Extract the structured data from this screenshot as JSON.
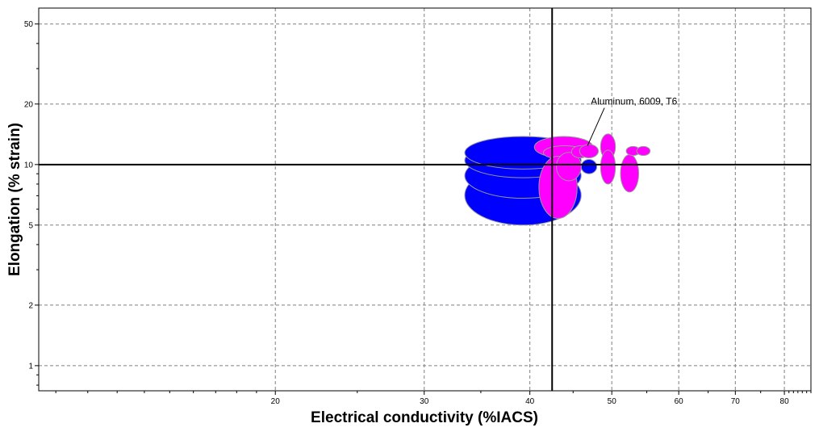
{
  "chart_data": {
    "type": "scatter",
    "xlabel": "Electrical conductivity (%IACS)",
    "ylabel": "Elongation (% strain)",
    "x_scale": "log",
    "y_scale": "log",
    "xlim": [
      10.5,
      86
    ],
    "ylim": [
      0.75,
      60
    ],
    "x_ticks": [
      {
        "value": 20,
        "label": "20"
      },
      {
        "value": 30,
        "label": "30"
      },
      {
        "value": 40,
        "label": "40"
      },
      {
        "value": 50,
        "label": "50"
      },
      {
        "value": 60,
        "label": "60"
      },
      {
        "value": 70,
        "label": "70"
      },
      {
        "value": 80,
        "label": "80"
      }
    ],
    "y_ticks": [
      {
        "value": 1,
        "label": "1"
      },
      {
        "value": 2,
        "label": "2"
      },
      {
        "value": 5,
        "label": "5"
      },
      {
        "value": 10,
        "label": "10"
      },
      {
        "value": 20,
        "label": "20"
      },
      {
        "value": 50,
        "label": "50"
      }
    ],
    "grid": true,
    "crosshair": {
      "x": 42.5,
      "y": 10
    },
    "colors": {
      "blue": "#0000ff",
      "magenta": "#ff00ff"
    },
    "series": [
      {
        "color": "#0000ff",
        "points": [
          {
            "x_range": [
              33.5,
              46.0
            ],
            "y_range": [
              5.0,
              9.9
            ]
          },
          {
            "x_range": [
              33.5,
              46.0
            ],
            "y_range": [
              6.8,
              11.4
            ]
          },
          {
            "x_range": [
              33.5,
              46.0
            ],
            "y_range": [
              8.6,
              12.8
            ]
          },
          {
            "x_range": [
              33.5,
              46.0
            ],
            "y_range": [
              9.5,
              13.8
            ]
          },
          {
            "x_range": [
              46.0,
              48.0
            ],
            "y_range": [
              9.0,
              10.6
            ]
          }
        ]
      },
      {
        "color": "#ff00ff",
        "points": [
          {
            "x_range": [
              40.5,
              47.5
            ],
            "y_range": [
              10.8,
              13.8
            ]
          },
          {
            "x_range": [
              41.5,
              46.5
            ],
            "y_range": [
              10.6,
              12.4
            ]
          },
          {
            "x_range": [
              41.0,
              45.5
            ],
            "y_range": [
              5.4,
              11.0
            ]
          },
          {
            "x_range": [
              43.0,
              46.0
            ],
            "y_range": [
              8.3,
              11.5
            ]
          },
          {
            "x_range": [
              44.8,
              47.0
            ],
            "y_range": [
              10.8,
              12.4
            ]
          },
          {
            "x_range": [
              45.8,
              48.2
            ],
            "y_range": [
              10.8,
              12.6
            ]
          },
          {
            "x_range": [
              48.5,
              50.5
            ],
            "y_range": [
              10.6,
              14.2
            ]
          },
          {
            "x_range": [
              48.5,
              50.5
            ],
            "y_range": [
              8.0,
              11.8
            ]
          },
          {
            "x_range": [
              51.2,
              53.8
            ],
            "y_range": [
              7.3,
              11.2
            ]
          },
          {
            "x_range": [
              52.0,
              54.0
            ],
            "y_range": [
              11.1,
              12.3
            ]
          },
          {
            "x_range": [
              53.5,
              55.5
            ],
            "y_range": [
              11.1,
              12.3
            ]
          }
        ]
      }
    ],
    "annotations": [
      {
        "text": "Aluminum, 6009, T6",
        "target": {
          "x": 46.8,
          "y": 12.4
        }
      }
    ]
  }
}
